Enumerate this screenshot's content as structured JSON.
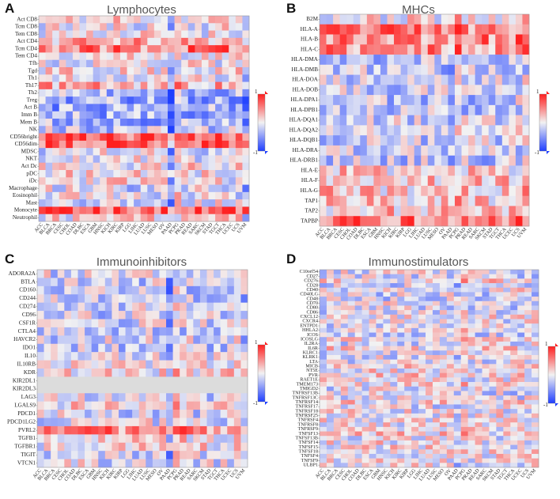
{
  "colors": {
    "low": "#1f3fff",
    "mid": "#f2f2f2",
    "high": "#ff1f1f",
    "missing": "#dcdcdc"
  },
  "chart_data": [
    {
      "type": "heatmap",
      "panel": "A",
      "title": "Lymphocytes",
      "legend": {
        "max_label": "1",
        "min_label": "-1"
      },
      "columns": [
        "ACC",
        "BLCA",
        "BRCA",
        "CESC",
        "CHOL",
        "COAD",
        "DLBC",
        "ESCA",
        "GBM",
        "HNSC",
        "KICH",
        "KIRC",
        "KIRP",
        "LGG",
        "LIHC",
        "LUAD",
        "LUSC",
        "MESO",
        "OV",
        "PAAD",
        "PCPG",
        "PRAD",
        "READ",
        "SARC",
        "SKCM",
        "STAD",
        "TGCT",
        "THCA",
        "UCEC",
        "UCS",
        "UVM"
      ],
      "rows": [
        "Act CD8",
        "Tcm CD8",
        "Tem CD8",
        "Act CD4",
        "Tcm CD4",
        "Tem CD4",
        "Tfh",
        "Tgd",
        "Th1",
        "Th17",
        "Th2",
        "Treg",
        "Act B",
        "Imm B",
        "Mem B",
        "NK",
        "CD56bright",
        "CD56dim",
        "MDSC",
        "NKT",
        "Act Dc",
        "pDC",
        "iDc",
        "Macrophage",
        "Eosinophil",
        "Mast",
        "Monocyte",
        "Neutrophil"
      ],
      "row_bias": [
        0.1,
        0.0,
        0.05,
        0.3,
        0.55,
        0.1,
        0.0,
        0.05,
        0.0,
        0.3,
        -0.3,
        -0.35,
        -0.35,
        -0.35,
        -0.35,
        -0.2,
        0.75,
        0.7,
        -0.05,
        0.0,
        0.1,
        0.05,
        0.05,
        -0.1,
        -0.05,
        -0.05,
        0.7,
        0.1
      ],
      "col_bias": [
        0.0,
        0.05,
        -0.05,
        0.0,
        0.0,
        0.0,
        0.0,
        0.0,
        0.0,
        0.0,
        0.0,
        0.1,
        0.0,
        -0.1,
        0.0,
        0.0,
        0.0,
        0.0,
        0.0,
        -0.45,
        0.1,
        0.0,
        0.0,
        0.0,
        0.0,
        0.0,
        0.0,
        0.0,
        0.0,
        0.0,
        -0.2
      ],
      "seed": 11
    },
    {
      "type": "heatmap",
      "panel": "B",
      "title": "MHCs",
      "legend": {
        "max_label": "1",
        "min_label": "-1"
      },
      "columns": [
        "ACC",
        "BLCA",
        "BRCA",
        "CESC",
        "CHOL",
        "COAD",
        "DLBC",
        "ESCA",
        "GBM",
        "HNSC",
        "KICH",
        "KIRC",
        "KIRP",
        "LGG",
        "LIHC",
        "LUAD",
        "LUSC",
        "MESO",
        "OV",
        "PAAD",
        "PCPG",
        "PRAD",
        "READ",
        "SARC",
        "SKCM",
        "STAD",
        "TGCT",
        "THCA",
        "UCEC",
        "UCS",
        "UVM"
      ],
      "rows": [
        "B2M",
        "HLA-A",
        "HLA-B",
        "HLA-C",
        "HLA-DMA",
        "HLA-DMB",
        "HLA-DOA",
        "HLA-DOB",
        "HLA-DPA1",
        "HLA-DPB1",
        "HLA-DQA1",
        "HLA-DQA2",
        "HLA-DQB1",
        "HLA-DRA",
        "HLA-DRB1",
        "HLA-E",
        "HLA-F",
        "HLA-G",
        "TAP1",
        "TAP2",
        "TAPBP"
      ],
      "row_bias": [
        0.05,
        0.55,
        0.5,
        0.45,
        -0.2,
        -0.2,
        -0.15,
        -0.15,
        -0.2,
        -0.2,
        -0.15,
        -0.1,
        -0.15,
        -0.2,
        -0.2,
        0.15,
        0.25,
        0.2,
        0.2,
        0.2,
        0.55
      ],
      "col_bias": [
        0.0,
        0.0,
        0.0,
        0.0,
        0.0,
        0.0,
        0.0,
        0.0,
        0.0,
        0.0,
        0.0,
        0.0,
        0.0,
        0.0,
        0.0,
        0.0,
        0.0,
        0.0,
        0.0,
        -0.15,
        0.15,
        0.0,
        0.0,
        0.0,
        0.0,
        0.0,
        0.0,
        0.0,
        0.0,
        0.1,
        0.1
      ],
      "seed": 23
    },
    {
      "type": "heatmap",
      "panel": "C",
      "title": "Immunoinhibitors",
      "legend": {
        "max_label": "1",
        "min_label": "-1"
      },
      "columns": [
        "ACC",
        "BLCA",
        "BRCA",
        "CESC",
        "CHOL",
        "COAD",
        "DLBC",
        "ESCA",
        "GBM",
        "HNSC",
        "KICH",
        "KIRC",
        "KIRP",
        "LGG",
        "LIHC",
        "LUAD",
        "LUSC",
        "MESO",
        "OV",
        "PAAD",
        "PCPG",
        "PRAD",
        "READ",
        "SARC",
        "SKCM",
        "STAD",
        "TGCT",
        "THCA",
        "UCEC",
        "UCS",
        "UVM"
      ],
      "rows": [
        "ADORA2A",
        "BTLA",
        "CD160",
        "CD244",
        "CD274",
        "CD96",
        "CSF1R",
        "CTLA4",
        "HAVCR2",
        "IDO1",
        "IL10",
        "IL10RB",
        "KDR",
        "KIR2DL1",
        "KIR2DL3",
        "LAG3",
        "LGALS9",
        "PDCD1",
        "PDCD1LG2",
        "PVRL2",
        "TGFB1",
        "TGFBR1",
        "TIGIT",
        "VTCN1"
      ],
      "row_bias": [
        -0.1,
        -0.15,
        -0.15,
        -0.15,
        -0.1,
        -0.15,
        -0.1,
        -0.15,
        -0.1,
        -0.15,
        -0.1,
        0.0,
        0.1,
        0.0,
        0.0,
        -0.1,
        0.1,
        -0.1,
        -0.05,
        0.5,
        0.1,
        0.05,
        -0.1,
        -0.05
      ],
      "col_bias": [
        0.0,
        0.0,
        0.0,
        0.0,
        0.0,
        0.0,
        0.0,
        0.0,
        0.0,
        0.0,
        0.0,
        0.0,
        0.0,
        0.0,
        0.0,
        0.0,
        0.0,
        0.0,
        0.0,
        -0.3,
        0.1,
        0.0,
        0.0,
        0.0,
        0.0,
        0.0,
        0.0,
        0.0,
        0.0,
        0.1,
        -0.1
      ],
      "missing_rows": [
        "KIR2DL1",
        "KIR2DL3"
      ],
      "seed": 37
    },
    {
      "type": "heatmap",
      "panel": "D",
      "title": "Immunostimulators",
      "legend": {
        "max_label": "1",
        "min_label": "-1"
      },
      "columns": [
        "ACC",
        "BLCA",
        "BRCA",
        "CESC",
        "CHOL",
        "COAD",
        "DLBC",
        "ESCA",
        "GBM",
        "HNSC",
        "KICH",
        "KIRC",
        "KIRP",
        "LGG",
        "LIHC",
        "LUAD",
        "LUSC",
        "MESO",
        "OV",
        "PAAD",
        "PCPG",
        "PRAD",
        "READ",
        "SARC",
        "SKCM",
        "STAD",
        "TGCT",
        "THCA",
        "UCEC",
        "UCS",
        "UVM"
      ],
      "rows": [
        "C10orf54",
        "CD27",
        "CD276",
        "CD28",
        "CD40",
        "CD40LG",
        "CD48",
        "CD70",
        "CD80",
        "CD86",
        "CXCL12",
        "CXCR4",
        "ENTPD1",
        "HHLA2",
        "ICOS",
        "ICOSLG",
        "IL2RA",
        "IL6R",
        "KLRC1",
        "KLRK1",
        "LTA",
        "MICB",
        "NT5E",
        "PVR",
        "RAET1E",
        "TMEM173",
        "TMIGD2",
        "TNFRSF13B",
        "TNFRSF13C",
        "TNFRSF14",
        "TNFRSF17",
        "TNFRSF18",
        "TNFRSF25",
        "TNFRSF4",
        "TNFRSF8",
        "TNFRSF9",
        "TNFSF13",
        "TNFSF13B",
        "TNFSF14",
        "TNFSF15",
        "TNFSF18",
        "TNFSF4",
        "TNFSF9",
        "ULBP1"
      ],
      "row_bias": [
        -0.05,
        -0.1,
        0.1,
        -0.1,
        0.0,
        -0.1,
        -0.1,
        0.0,
        -0.1,
        -0.1,
        0.0,
        -0.05,
        -0.05,
        0.0,
        -0.1,
        0.05,
        -0.05,
        0.1,
        -0.05,
        -0.05,
        -0.05,
        0.1,
        0.05,
        0.15,
        0.0,
        0.05,
        -0.05,
        -0.1,
        -0.05,
        0.1,
        -0.05,
        0.0,
        0.05,
        0.0,
        0.0,
        0.0,
        0.1,
        0.0,
        0.05,
        0.05,
        0.0,
        0.05,
        0.05,
        0.0
      ],
      "col_bias": [
        0.0,
        0.0,
        0.0,
        0.0,
        0.0,
        0.0,
        0.0,
        0.0,
        0.0,
        0.0,
        0.0,
        0.0,
        0.0,
        0.0,
        0.0,
        0.0,
        0.0,
        0.0,
        0.0,
        -0.2,
        0.1,
        0.0,
        0.0,
        0.0,
        0.0,
        0.0,
        0.0,
        0.0,
        0.0,
        0.0,
        0.0
      ],
      "seed": 53
    }
  ]
}
